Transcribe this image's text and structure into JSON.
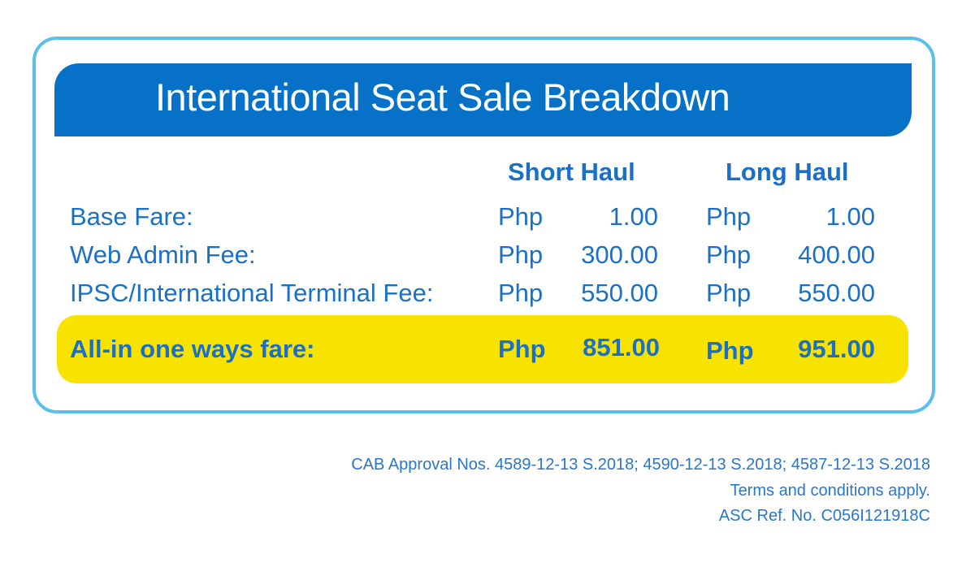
{
  "title": "International Seat Sale Breakdown",
  "columns": [
    "Short Haul",
    "Long Haul"
  ],
  "currency": "Php",
  "rows": [
    {
      "label": "Base Fare:",
      "short": "1.00",
      "long": "1.00"
    },
    {
      "label": "Web Admin Fee:",
      "short": "300.00",
      "long": "400.00"
    },
    {
      "label": "IPSC/International Terminal Fee:",
      "short": "550.00",
      "long": "550.00"
    }
  ],
  "total": {
    "label": "All-in one ways fare:",
    "short": "851.00",
    "long": "951.00"
  },
  "footer": {
    "approval": "CAB Approval Nos. 4589-12-13 S.2018; 4590-12-13 S.2018; 4587-12-13 S.2018",
    "terms": "Terms and conditions apply.",
    "ref": "ASC Ref. No. C056I121918C"
  },
  "colors": {
    "banner": "#0671c6",
    "border": "#5cbfea",
    "highlight": "#f8e300",
    "text": "#1b70c6"
  }
}
